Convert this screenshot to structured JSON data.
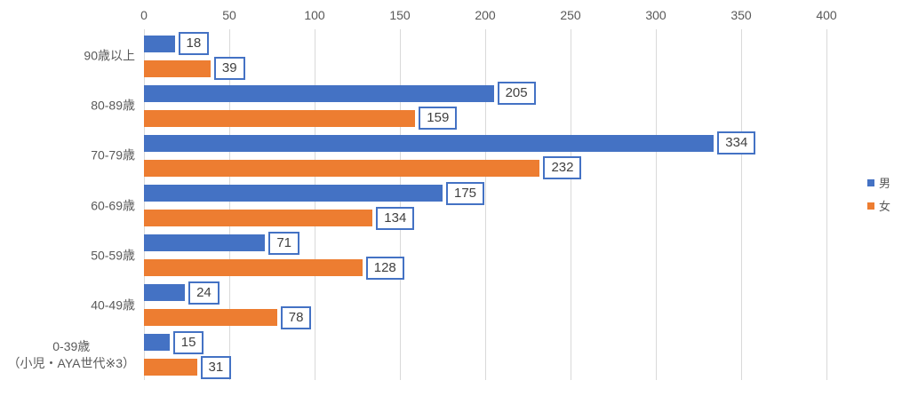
{
  "chart_data": {
    "type": "bar",
    "orientation": "horizontal",
    "title": "",
    "categories": [
      "90歳以上",
      "80-89歳",
      "70-79歳",
      "60-69歳",
      "50-59歳",
      "40-49歳",
      "0-39歳\n（小児・AYA世代※3）"
    ],
    "series": [
      {
        "name": "男",
        "color": "#4472c4",
        "values": [
          18,
          205,
          334,
          175,
          71,
          24,
          15
        ]
      },
      {
        "name": "女",
        "color": "#ed7d31",
        "values": [
          39,
          159,
          232,
          134,
          128,
          78,
          31
        ]
      }
    ],
    "x_axis": {
      "position": "top",
      "min": 0,
      "max": 400,
      "tick_interval": 50,
      "ticks": [
        0,
        50,
        100,
        150,
        200,
        250,
        300,
        350,
        400
      ]
    },
    "grid": true,
    "gridline_color": "#d9d9d9",
    "axis_text_color": "#595959",
    "data_labels": {
      "shown": true,
      "style": "boxed",
      "border_color": "#4472c4",
      "fill": "#ffffff",
      "text_color": "#404040"
    },
    "legend": {
      "position": "right",
      "entries": [
        "男",
        "女"
      ]
    }
  }
}
